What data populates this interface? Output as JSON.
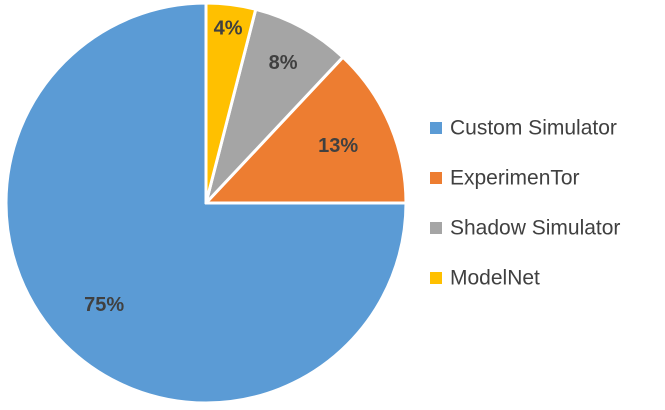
{
  "chart_data": {
    "type": "pie",
    "categories": [
      "Custom Simulator",
      "ExperimenTor",
      "Shadow Simulator",
      "ModelNet"
    ],
    "values": [
      75,
      13,
      8,
      4
    ],
    "data_labels": [
      "75%",
      "13%",
      "8%",
      "4%"
    ],
    "colors": [
      "#5B9BD5",
      "#ED7D31",
      "#A5A5A5",
      "#FFC000"
    ],
    "legend": {
      "placement": "right",
      "entries": [
        "Custom Simulator",
        "ExperimenTor",
        "Shadow Simulator",
        "ModelNet"
      ]
    },
    "title": ""
  }
}
